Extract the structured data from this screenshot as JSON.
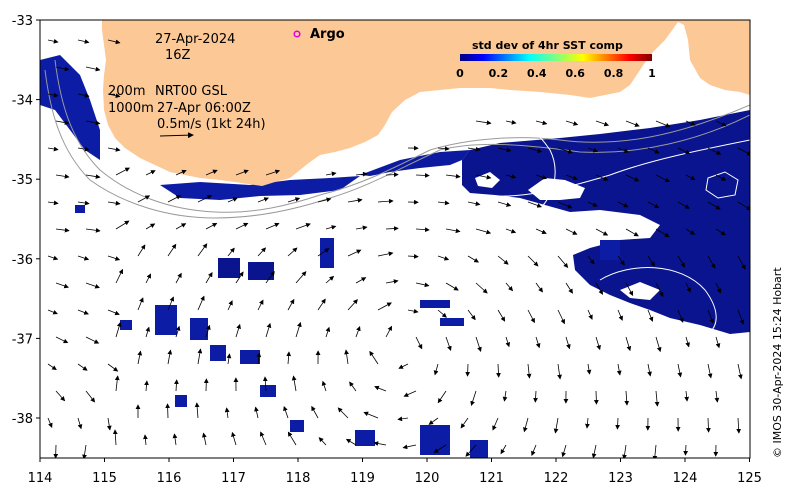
{
  "map": {
    "date_line": "27-Apr-2024",
    "time_line": "16Z",
    "depth_200": "200m",
    "depth_1000": "1000m",
    "model_line": "NRT00 GSL",
    "model_time": "27-Apr 06:00Z",
    "scale_label": "0.5m/s (1kt 24h)",
    "argo_label": "Argo",
    "credit": "© IMOS 30-Apr-2024 15:24 Hobart",
    "lon_ticks": [
      "114",
      "115",
      "116",
      "117",
      "118",
      "119",
      "120",
      "121",
      "122",
      "123",
      "124",
      "125"
    ],
    "lat_ticks": [
      "-33",
      "-34",
      "-35",
      "-36",
      "-37",
      "-38"
    ],
    "colorbar": {
      "title": "std dev of 4hr SST comp",
      "ticks": [
        "0",
        "0.2",
        "0.4",
        "0.6",
        "0.8",
        "1"
      ]
    },
    "colors": {
      "land": "#fcc896",
      "sst_dark": "#08108a",
      "sst_mid": "#1828c8",
      "argo": "#e000e0"
    }
  }
}
